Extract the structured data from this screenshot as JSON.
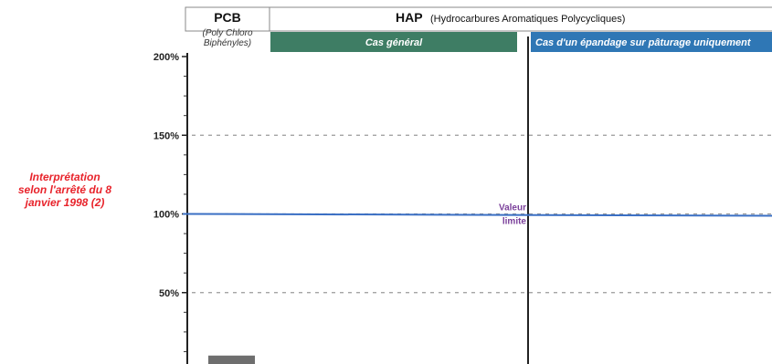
{
  "annotation": {
    "lines": [
      "Interprétation",
      "selon l'arrêté du 8",
      "janvier 1998 (2)"
    ],
    "color": "#e8232b"
  },
  "headers": {
    "pcb": {
      "title": "PCB",
      "subtitle_lines": [
        "(Poly Chloro",
        "Biphényles)"
      ]
    },
    "hap": {
      "title": "HAP",
      "subtitle": "(Hydrocarbures Aromatiques Polycycliques)"
    },
    "bands": [
      {
        "label": "Cas général",
        "color": "#3e7d64"
      },
      {
        "label": "Cas d'un épandage sur pâturage uniquement",
        "color": "#2f77b5"
      }
    ]
  },
  "chart_data": {
    "type": "bar",
    "categories": [
      "PCB"
    ],
    "values": [
      10
    ],
    "yticks": [
      "50%",
      "100%",
      "150%",
      "200%"
    ],
    "ylim": [
      0,
      225
    ],
    "grid": true,
    "reference_line": {
      "value": 100,
      "label_lines": [
        "Valeur",
        "limite"
      ],
      "color": "#3a6fc4",
      "label_color": "#7a3f9a"
    },
    "bar_color": "#6e6e6e"
  }
}
